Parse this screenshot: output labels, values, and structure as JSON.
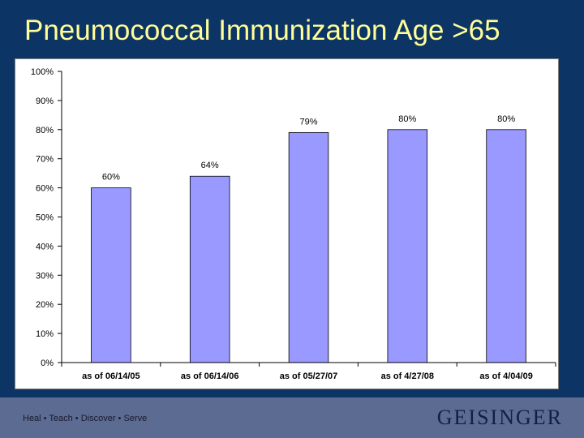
{
  "slide": {
    "title": "Pneumococcal Immunization Age >65"
  },
  "footer": {
    "tagline": "Heal • Teach • Discover • Serve",
    "logo_text": "GEISINGER"
  },
  "colors": {
    "background": "#0c3464",
    "title": "#ffff99",
    "bar_fill": "#9999ff",
    "bar_stroke": "#000000",
    "footer": "#5b6b92"
  },
  "chart_data": {
    "type": "bar",
    "categories": [
      "as of 06/14/05",
      "as of 06/14/06",
      "as of 05/27/07",
      "as of 4/27/08",
      "as of 4/04/09"
    ],
    "values": [
      60,
      64,
      79,
      80,
      80
    ],
    "data_labels": [
      "60%",
      "64%",
      "79%",
      "80%",
      "80%"
    ],
    "yticks": [
      0,
      10,
      20,
      30,
      40,
      50,
      60,
      70,
      80,
      90,
      100
    ],
    "ytick_labels": [
      "0%",
      "10%",
      "20%",
      "30%",
      "40%",
      "50%",
      "60%",
      "70%",
      "80%",
      "90%",
      "100%"
    ],
    "ylim": [
      0,
      100
    ],
    "xlabel": "",
    "ylabel": "",
    "grid": false,
    "legend": "none"
  }
}
